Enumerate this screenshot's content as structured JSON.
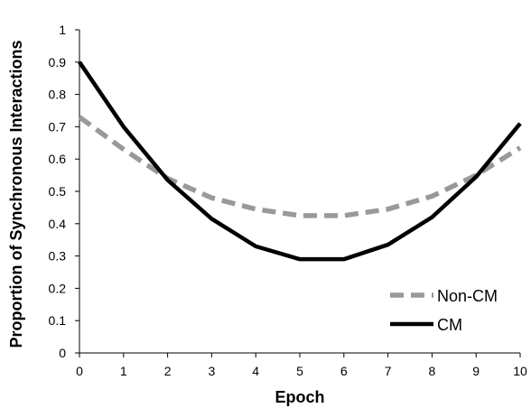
{
  "chart_data": {
    "type": "line",
    "title": "",
    "xlabel": "Epoch",
    "ylabel": "Proportion of Synchronous Interactions",
    "x": [
      0,
      1,
      2,
      3,
      4,
      5,
      6,
      7,
      8,
      9,
      10
    ],
    "xlim": [
      0,
      10
    ],
    "ylim": [
      0,
      1
    ],
    "xticks": [
      "0",
      "1",
      "2",
      "3",
      "4",
      "5",
      "6",
      "7",
      "8",
      "9",
      "10"
    ],
    "yticks": [
      "0",
      "0.1",
      "0.2",
      "0.3",
      "0.4",
      "0.5",
      "0.6",
      "0.7",
      "0.8",
      "0.9",
      "1"
    ],
    "grid": false,
    "legend_position": "bottom-right",
    "series": [
      {
        "name": "Non-CM",
        "style": "dashed",
        "color": "#999999",
        "values": [
          0.73,
          0.63,
          0.54,
          0.48,
          0.445,
          0.425,
          0.425,
          0.445,
          0.485,
          0.55,
          0.635
        ]
      },
      {
        "name": "CM",
        "style": "solid",
        "color": "#000000",
        "values": [
          0.9,
          0.7,
          0.535,
          0.415,
          0.33,
          0.29,
          0.29,
          0.335,
          0.42,
          0.545,
          0.71
        ]
      }
    ]
  }
}
